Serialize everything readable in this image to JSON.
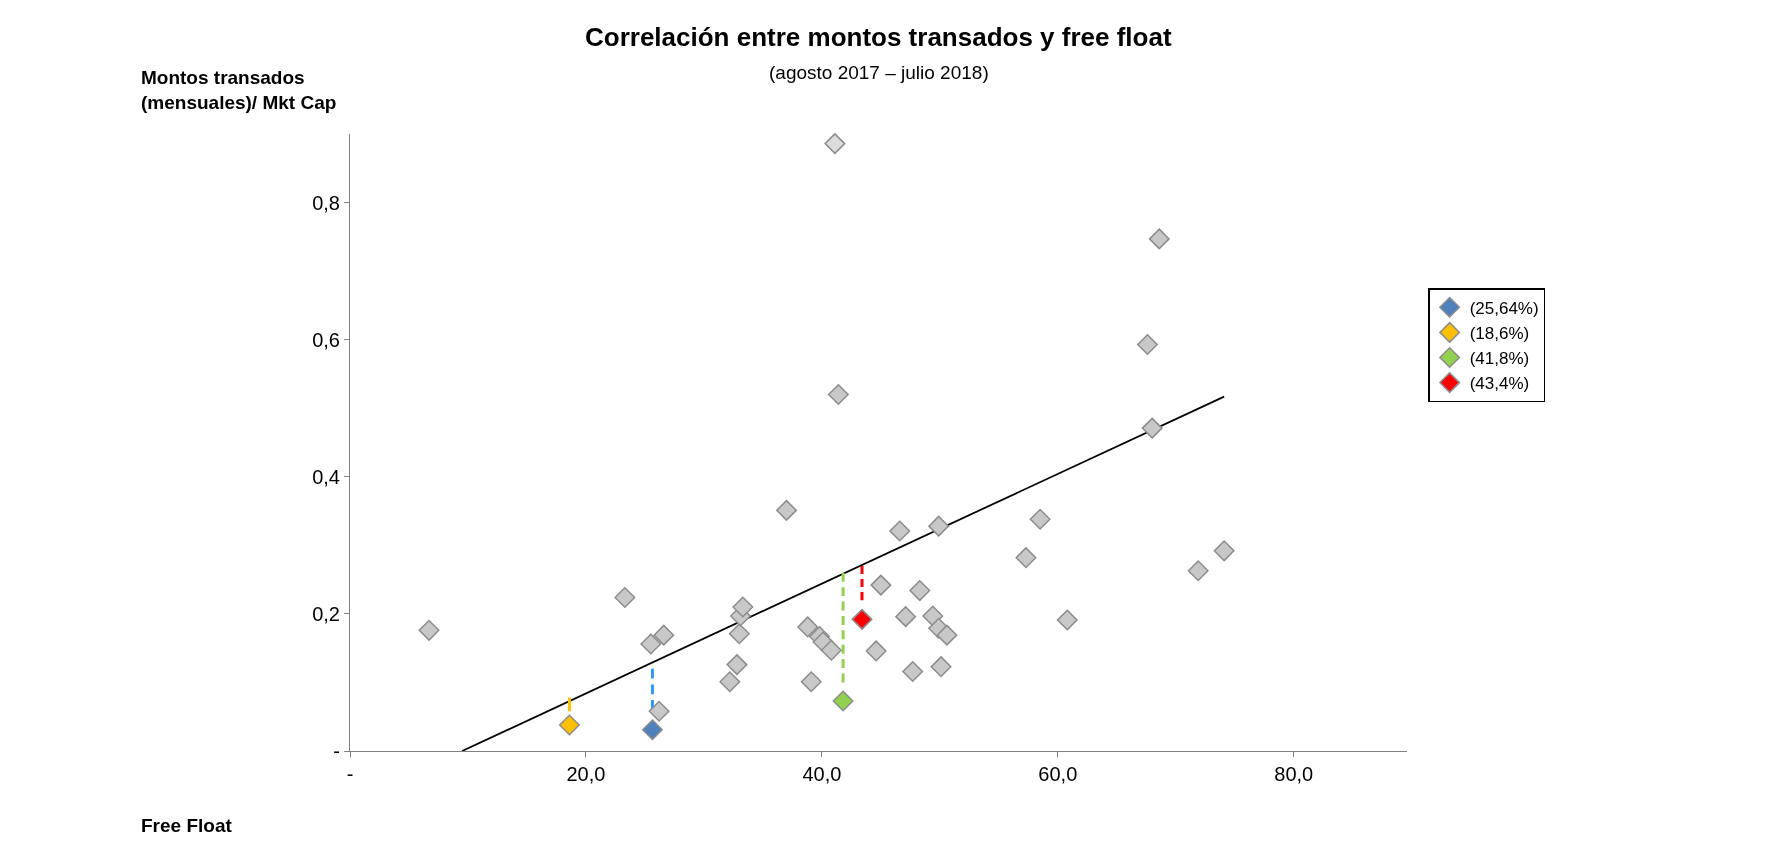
{
  "chart_data": {
    "type": "scatter",
    "title": "Correlación entre montos transados y free float",
    "subtitle": "(agosto 2017 – julio 2018)",
    "annotations": [
      "Free Float"
    ],
    "ylabel": "Montos transados\n(mensuales)/ Mkt Cap",
    "xlim": [
      0,
      89.6
    ],
    "xticks": [
      {
        "value": 0,
        "label": "-"
      },
      {
        "value": 20,
        "label": "20,0"
      },
      {
        "value": 40,
        "label": "40,0"
      },
      {
        "value": 60,
        "label": "60,0"
      },
      {
        "value": 80,
        "label": "80,0"
      }
    ],
    "ylim": [
      0,
      0.9
    ],
    "yticks": [
      {
        "value": 0,
        "label": "-"
      },
      {
        "value": 0.2,
        "label": "0,2"
      },
      {
        "value": 0.4,
        "label": "0,4"
      },
      {
        "value": 0.6,
        "label": "0,6"
      },
      {
        "value": 0.8,
        "label": "0,8"
      }
    ],
    "legend": "right",
    "marker": "diamond",
    "series": [
      {
        "type": "line",
        "color": "#000000",
        "x": [
          9.5,
          74.1
        ],
        "values": [
          0,
          0.517
        ],
        "marker": "none",
        "line_style": "solid"
      },
      {
        "type": "line",
        "color": "#3399ff",
        "x": [
          25.64,
          25.64
        ],
        "values": [
          0.06,
          0.12
        ],
        "marker": "none",
        "line_style": "dashed"
      },
      {
        "type": "line",
        "color": "#ffc000",
        "x": [
          18.6,
          18.6
        ],
        "values": [
          0.058,
          0.078
        ],
        "marker": "none",
        "line_style": "dashed"
      },
      {
        "type": "line",
        "color": "#92d050",
        "x": [
          41.8,
          41.8
        ],
        "values": [
          0.1,
          0.26
        ],
        "marker": "none",
        "line_style": "dashed"
      },
      {
        "type": "line",
        "color": "#ff0000",
        "x": [
          43.4,
          43.4
        ],
        "values": [
          0.22,
          0.27
        ],
        "marker": "none",
        "line_style": "dashed"
      },
      {
        "color": "#c8c8c8",
        "x": [
          6.7,
          23.3,
          25.5,
          26.6,
          26.2,
          32.2,
          32.8,
          33.0,
          33.1,
          33.3,
          37.0,
          38.8,
          39.1,
          39.8,
          40.1,
          40.8,
          41.4,
          44.6,
          45.0,
          46.6,
          47.1,
          48.3,
          47.7,
          49.4,
          49.9,
          50.6,
          49.9,
          50.1,
          57.3,
          58.5,
          60.8,
          67.6,
          68.0,
          68.6,
          71.9,
          74.1
        ],
        "values": [
          0.176,
          0.224,
          0.156,
          0.169,
          0.058,
          0.101,
          0.126,
          0.171,
          0.197,
          0.21,
          0.351,
          0.181,
          0.101,
          0.167,
          0.159,
          0.147,
          0.52,
          0.146,
          0.242,
          0.321,
          0.196,
          0.234,
          0.116,
          0.197,
          0.179,
          0.169,
          0.328,
          0.123,
          0.282,
          0.338,
          0.191,
          0.593,
          0.471,
          0.747,
          0.263,
          0.292
        ]
      },
      {
        "type": "scatter",
        "color": "#dcdcdc",
        "x": [
          41.1
        ],
        "values": [
          0.886
        ]
      },
      {
        "type": "scatter",
        "name": "(25,64%)",
        "color": "#4f81bd",
        "x": [
          25.64
        ],
        "values": [
          0.031
        ]
      },
      {
        "type": "scatter",
        "name": "(18,6%)",
        "color": "#ffc000",
        "x": [
          18.6
        ],
        "values": [
          0.038
        ]
      },
      {
        "type": "scatter",
        "name": "(41,8%)",
        "color": "#92d050",
        "x": [
          41.8
        ],
        "values": [
          0.073
        ]
      },
      {
        "type": "scatter",
        "name": "(43,4%)",
        "color": "#ff0000",
        "x": [
          43.4
        ],
        "values": [
          0.192
        ]
      }
    ]
  }
}
